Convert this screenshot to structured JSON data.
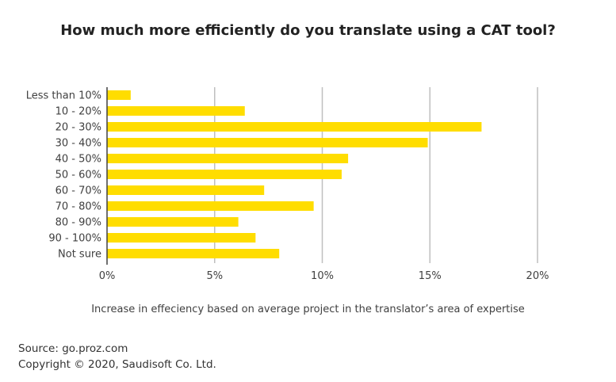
{
  "chart_data": {
    "type": "bar",
    "orientation": "horizontal",
    "title": "How much more efficiently do you translate using a CAT tool?",
    "xlabel": "Increase in effeciency based on average project in the translator’s area of expertise",
    "ylabel": "",
    "categories": [
      "Less than 10%",
      "10 - 20%",
      "20 - 30%",
      "30 - 40%",
      "40 - 50%",
      "50 - 60%",
      "60 - 70%",
      "70 - 80%",
      "80 - 90%",
      "90 - 100%",
      "Not sure"
    ],
    "values": [
      1.1,
      6.4,
      17.4,
      14.9,
      11.2,
      10.9,
      7.3,
      9.6,
      6.1,
      6.9,
      8.0
    ],
    "xlim": [
      0,
      20
    ],
    "xticks": [
      0,
      5,
      10,
      15,
      20
    ],
    "xtick_labels": [
      "0%",
      "5%",
      "10%",
      "15%",
      "20%"
    ],
    "grid": "vertical",
    "legend": "none",
    "bar_color": "#FFDD00",
    "grid_color": "#BFBFBF"
  },
  "footer": {
    "source": "Source: go.proz.com",
    "copyright": "Copyright © 2020, Saudisoft Co. Ltd."
  }
}
